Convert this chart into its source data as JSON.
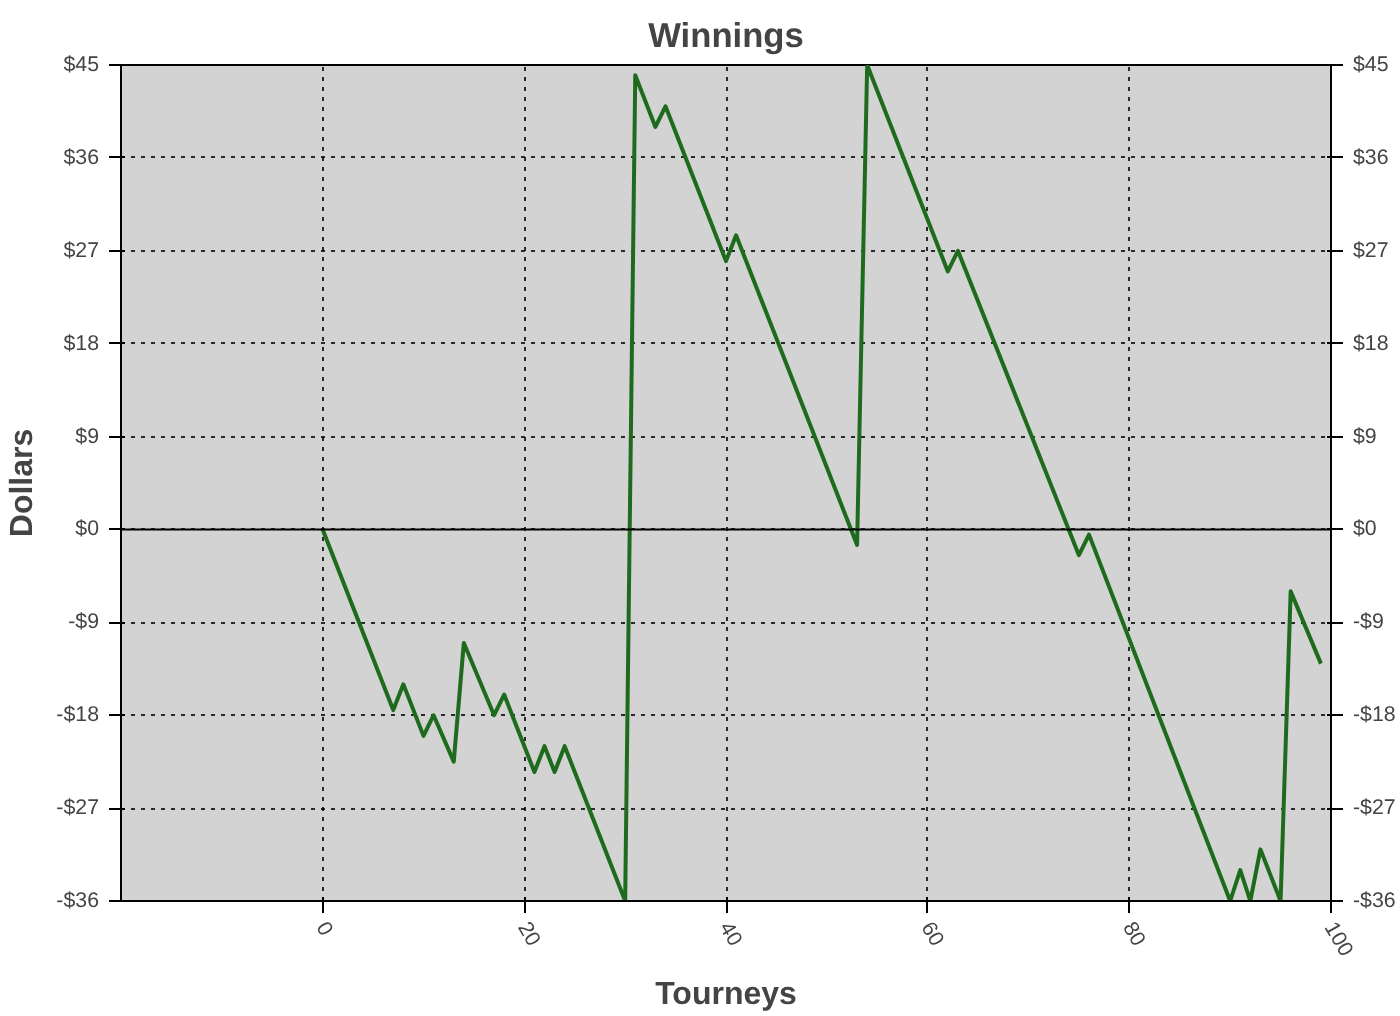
{
  "chart_data": {
    "type": "line",
    "title": "Winnings",
    "xlabel": "Tourneys",
    "ylabel": "Dollars",
    "x": [
      0,
      7,
      8,
      10,
      11,
      13,
      14,
      17,
      18,
      21,
      22,
      23,
      24,
      30,
      31,
      33,
      34,
      40,
      41,
      53,
      54,
      62,
      63,
      75,
      76,
      90,
      91,
      92,
      93,
      95,
      96,
      99
    ],
    "series": [
      {
        "color": "#1e6b1e",
        "values": [
          0,
          -17.5,
          -15,
          -20,
          -18,
          -22.5,
          -11,
          -18,
          -16,
          -23.5,
          -21,
          -23.5,
          -21,
          -36,
          44,
          39,
          41,
          26,
          28.5,
          -1.5,
          45,
          25,
          27,
          -2.5,
          -0.5,
          -36,
          -33,
          -36,
          -31,
          -36,
          -6,
          -13
        ]
      }
    ],
    "xlim": [
      -20,
      100
    ],
    "xticks": [
      0,
      20,
      40,
      60,
      80,
      100
    ],
    "ylim": [
      -36,
      45
    ],
    "yticks": [
      {
        "value": -36,
        "label": "-$36"
      },
      {
        "value": -27,
        "label": "-$27"
      },
      {
        "value": -18,
        "label": "-$18"
      },
      {
        "value": -9,
        "label": "-$9"
      },
      {
        "value": 0,
        "label": "$0"
      },
      {
        "value": 9,
        "label": "$9"
      },
      {
        "value": 18,
        "label": "$18"
      },
      {
        "value": 27,
        "label": "$27"
      },
      {
        "value": 36,
        "label": "$36"
      },
      {
        "value": 45,
        "label": "$45"
      }
    ],
    "y2lim": [
      -36,
      45
    ],
    "y2ticks": [
      {
        "value": -36,
        "label": "-$36"
      },
      {
        "value": -27,
        "label": "-$27"
      },
      {
        "value": -18,
        "label": "-$18"
      },
      {
        "value": -9,
        "label": "-$9"
      },
      {
        "value": 0,
        "label": "$0"
      },
      {
        "value": 9,
        "label": "$9"
      },
      {
        "value": 18,
        "label": "$18"
      },
      {
        "value": 27,
        "label": "$27"
      },
      {
        "value": 36,
        "label": "$36"
      },
      {
        "value": 45,
        "label": "$45"
      }
    ],
    "ref_lines": [
      {
        "axis": "y",
        "value": 0,
        "color": "#000000"
      }
    ],
    "grid": true,
    "marker": "none",
    "line_style": "solid"
  }
}
